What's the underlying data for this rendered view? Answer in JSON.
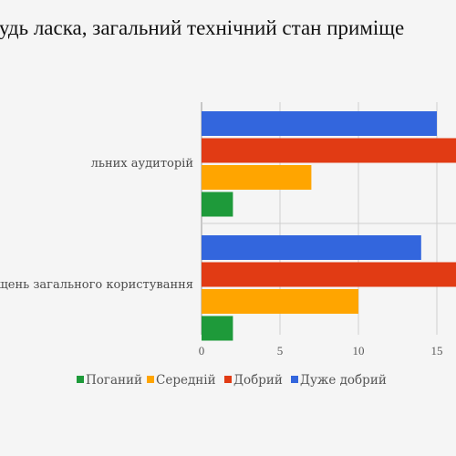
{
  "chart_data": {
    "type": "bar",
    "orientation": "horizontal",
    "title": "будь ласка, загальний технічний стан приміще",
    "categories": [
      "льних аудиторій",
      "щень загального користування"
    ],
    "series": [
      {
        "name": "Поганий",
        "values": [
          2,
          2
        ],
        "color": "#1e9a3a"
      },
      {
        "name": "Середній",
        "values": [
          7,
          10
        ],
        "color": "#ffa500"
      },
      {
        "name": "Добрий",
        "values": [
          17,
          17
        ],
        "color": "#e13b14"
      },
      {
        "name": "Дуже добрий",
        "values": [
          15,
          14
        ],
        "color": "#3366dd"
      }
    ],
    "xlim": [
      0,
      17
    ],
    "xticks": [
      0,
      5,
      10,
      15
    ],
    "grid": true,
    "legend_position": "bottom"
  }
}
